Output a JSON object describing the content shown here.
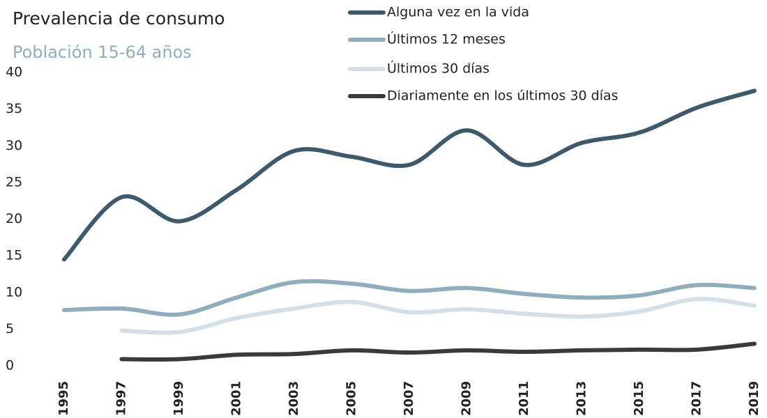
{
  "chart_data": {
    "type": "line",
    "title": "Prevalencia de consumo",
    "subtitle": "Población 15-64 años",
    "categories": [
      "1995",
      "1997",
      "1999",
      "2001",
      "2003",
      "2005",
      "2007",
      "2009",
      "2011",
      "2013",
      "2015",
      "2017",
      "2019"
    ],
    "series": [
      {
        "name": "Alguna vez en la vida",
        "color": "#3d5a6c",
        "values": [
          14.5,
          23.0,
          19.7,
          24.0,
          29.3,
          28.5,
          27.4,
          32.1,
          27.4,
          30.4,
          31.8,
          35.2,
          37.5
        ]
      },
      {
        "name": "Últimos 12 meses",
        "color": "#8eaec0",
        "values": [
          7.6,
          7.8,
          7.0,
          9.3,
          11.4,
          11.2,
          10.2,
          10.6,
          9.8,
          9.3,
          9.6,
          11.0,
          10.6
        ]
      },
      {
        "name": "Últimos 30 días",
        "color": "#d3e0e8",
        "values": [
          null,
          4.8,
          4.6,
          6.5,
          7.8,
          8.7,
          7.3,
          7.7,
          7.1,
          6.7,
          7.4,
          9.1,
          8.2
        ]
      },
      {
        "name": "Diariamente en los últimos 30 días",
        "color": "#3a3a3a",
        "values": [
          null,
          0.9,
          0.9,
          1.5,
          1.6,
          2.1,
          1.8,
          2.1,
          1.9,
          2.1,
          2.2,
          2.2,
          3.0
        ]
      }
    ],
    "ylim": [
      0,
      40
    ],
    "yticks": [
      0,
      5,
      10,
      15,
      20,
      25,
      30,
      35,
      40
    ],
    "grid": false
  }
}
